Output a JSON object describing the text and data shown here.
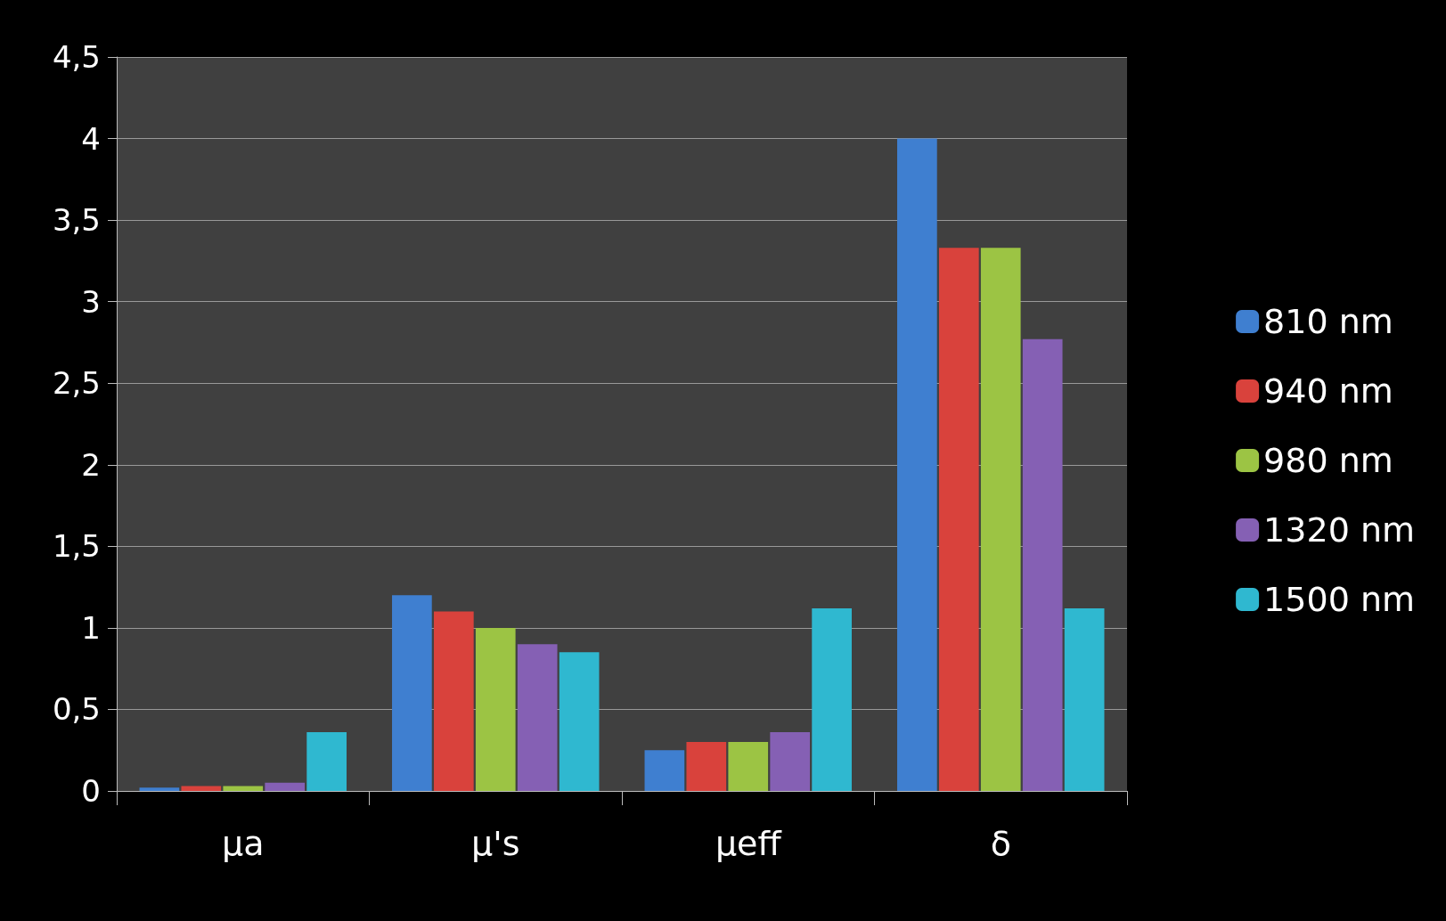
{
  "chart_data": {
    "type": "bar",
    "categories": [
      "μa",
      "μ's",
      "μeff",
      "δ"
    ],
    "series": [
      {
        "name": "810 nm",
        "color": "#3f7fd0",
        "values": [
          0.02,
          1.2,
          0.25,
          4.0
        ]
      },
      {
        "name": "940 nm",
        "color": "#d9423c",
        "values": [
          0.03,
          1.1,
          0.3,
          3.33
        ]
      },
      {
        "name": "980 nm",
        "color": "#9cc444",
        "values": [
          0.03,
          1.0,
          0.3,
          3.33
        ]
      },
      {
        "name": "1320 nm",
        "color": "#8560b4",
        "values": [
          0.05,
          0.9,
          0.36,
          2.77
        ]
      },
      {
        "name": "1500 nm",
        "color": "#2fb8d0",
        "values": [
          0.36,
          0.85,
          1.12,
          1.12
        ]
      }
    ],
    "ylim": [
      0,
      4.5
    ],
    "yticks": [
      0,
      {
        "value": 0.5,
        "label": "0,5"
      },
      1,
      {
        "value": 1.5,
        "label": "1,5"
      },
      2,
      {
        "value": 2.5,
        "label": "2,5"
      },
      3,
      {
        "value": 3.5,
        "label": "3,5"
      },
      4,
      {
        "value": 4.5,
        "label": "4,5"
      }
    ],
    "grid": "y",
    "legend": "right"
  }
}
